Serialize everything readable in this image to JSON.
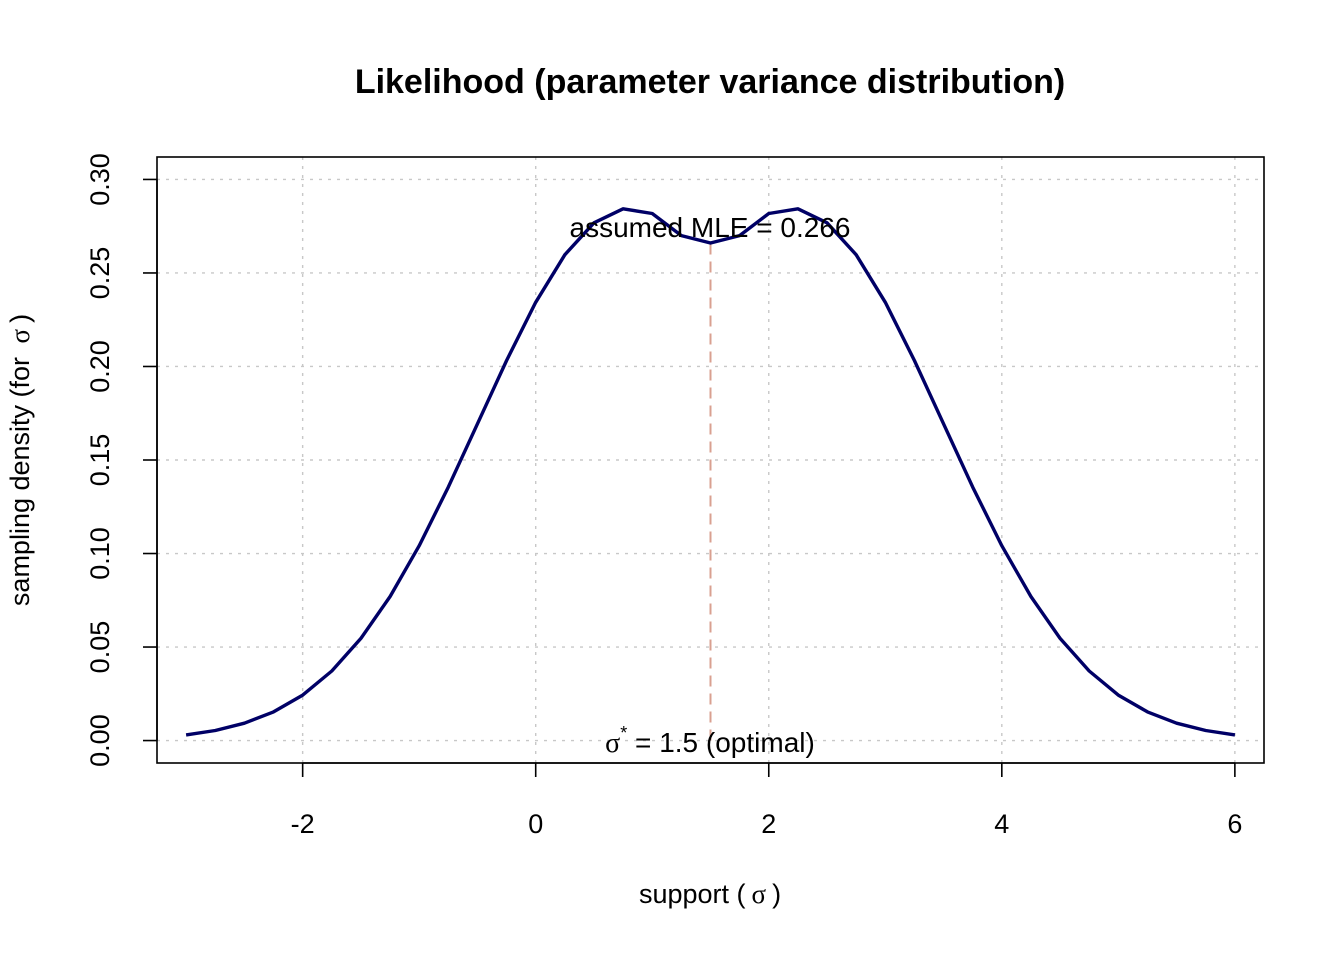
{
  "chart_data": {
    "type": "line",
    "title": "Likelihood (parameter variance distribution)",
    "xlabel": {
      "prefix": "support (",
      "symbol": "σ",
      "suffix": ")"
    },
    "ylabel": {
      "prefix": "sampling density (for ",
      "symbol": "σ",
      "suffix": ")"
    },
    "xlim": [
      -3.25,
      6.25
    ],
    "ylim": [
      -0.012,
      0.312
    ],
    "x_ticks": [
      -2,
      0,
      2,
      4,
      6
    ],
    "x_tick_labels": [
      "-2",
      "0",
      "2",
      "4",
      "6"
    ],
    "y_ticks": [
      0.0,
      0.05,
      0.1,
      0.15,
      0.2,
      0.25,
      0.3
    ],
    "y_tick_labels": [
      "0.00",
      "0.05",
      "0.10",
      "0.15",
      "0.20",
      "0.25",
      "0.30"
    ],
    "grid": true,
    "series": [
      {
        "color": "#000066",
        "x": [
          -3.0,
          -2.75,
          -2.5,
          -2.25,
          -2.0,
          -1.75,
          -1.5,
          -1.25,
          -1.0,
          -0.75,
          -0.5,
          -0.25,
          0.0,
          0.25,
          0.5,
          0.75,
          1.0,
          1.25,
          1.5,
          1.75,
          2.0,
          2.25,
          2.5,
          2.75,
          3.0,
          3.25,
          3.5,
          3.75,
          4.0,
          4.25,
          4.5,
          4.75,
          5.0,
          5.25,
          5.5,
          5.75,
          6.0
        ],
        "y": [
          0.003,
          0.0054,
          0.0093,
          0.0153,
          0.0243,
          0.0372,
          0.0546,
          0.077,
          0.1042,
          0.1355,
          0.1693,
          0.2032,
          0.2343,
          0.2597,
          0.2768,
          0.2843,
          0.2818,
          0.27,
          0.266,
          0.27,
          0.2818,
          0.2843,
          0.2768,
          0.2597,
          0.2343,
          0.2032,
          0.1693,
          0.1355,
          0.1042,
          0.077,
          0.0546,
          0.0372,
          0.0243,
          0.0153,
          0.0093,
          0.0054,
          0.003
        ]
      }
    ],
    "annotations": {
      "peak_label": "assumed MLE = 0.266",
      "optimal_symbol": "σ",
      "optimal_superscript": "*",
      "optimal_text": " = 1.5 (optimal)"
    },
    "mle": {
      "x": 1.5,
      "y": 0.266,
      "color": "#d9a090"
    }
  }
}
